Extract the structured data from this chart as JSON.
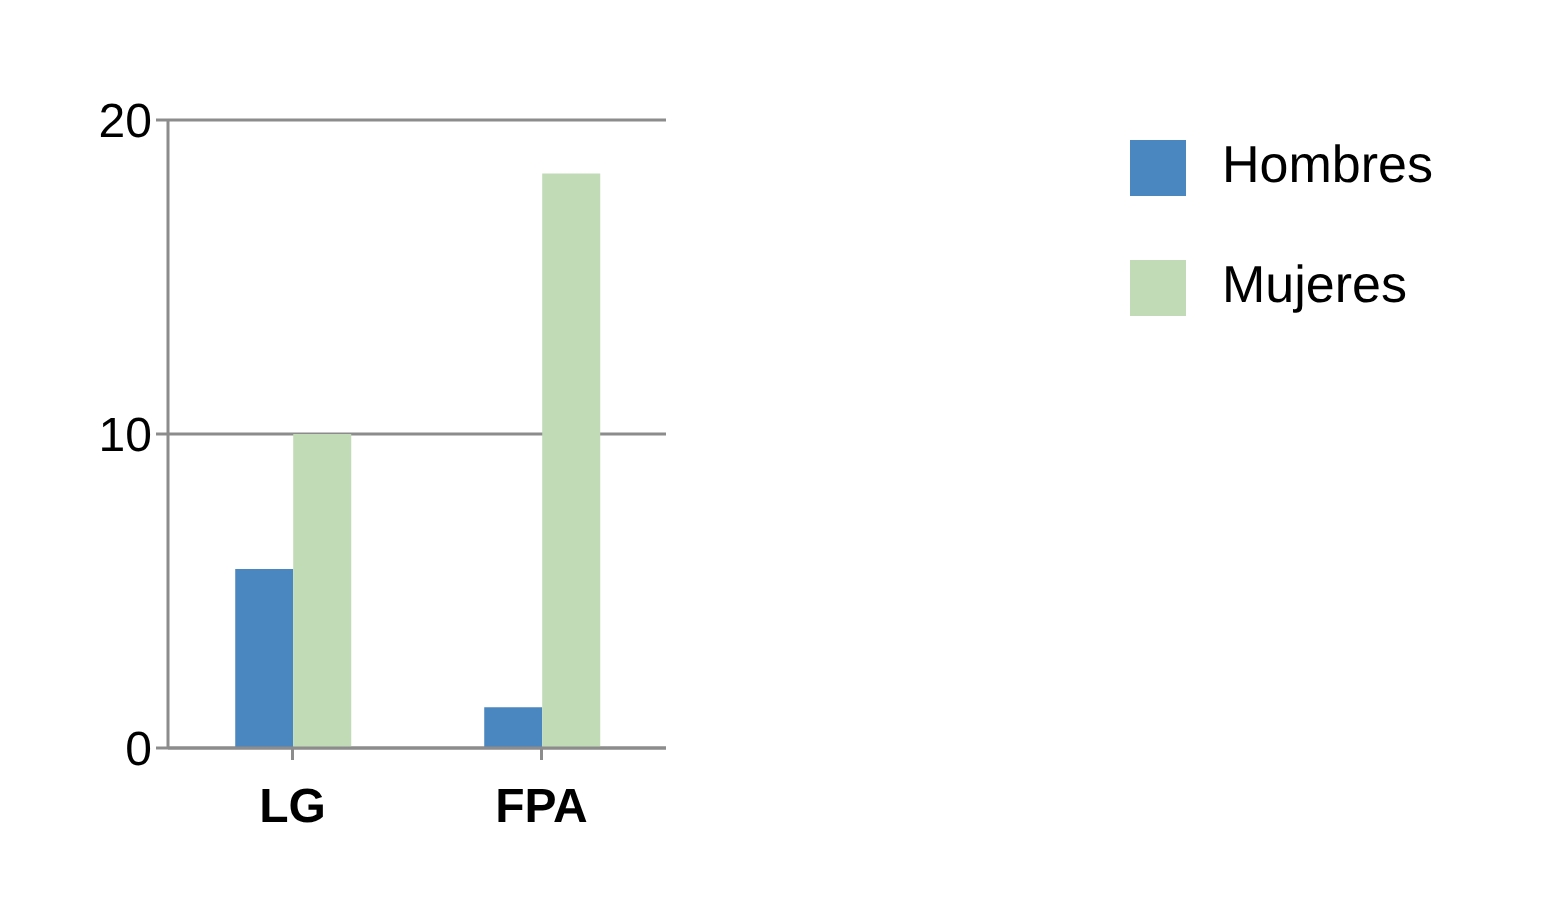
{
  "chart_data": {
    "type": "bar",
    "categories": [
      "LG",
      "FPA"
    ],
    "series": [
      {
        "name": "Hombres",
        "color": "#4a87c1",
        "values": [
          5.7,
          1.3
        ]
      },
      {
        "name": "Mujeres",
        "color": "#c0dbb5",
        "values": [
          10.0,
          18.3
        ]
      }
    ],
    "ylim": [
      0,
      20
    ],
    "yticks": [
      0,
      10,
      20
    ],
    "grid": "y",
    "legend": "top right"
  }
}
